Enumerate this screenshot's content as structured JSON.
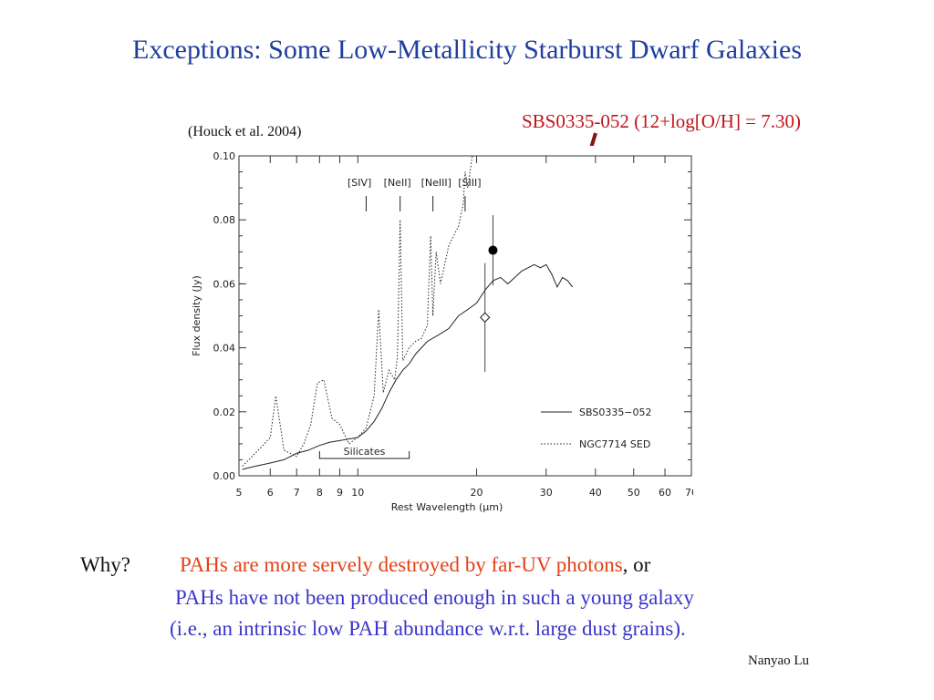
{
  "slide": {
    "title": "Exceptions: Some Low-Metallicity Starburst Dwarf Galaxies",
    "citation": "(Houck et al.  2004)",
    "callout": "SBS0335-052 (12+log[O/H] = 7.30)",
    "why_label": "Why?",
    "reason1_red": "PAHs are more servely destroyed by far-UV photons",
    "reason1_tail": ", or",
    "reason2": "PAHs have not been produced enough in such a young galaxy",
    "reason3": "(i.e., an intrinsic low PAH abundance w.r.t. large dust grains).",
    "author": "Nanyao Lu",
    "colors": {
      "title": "#1f3f9f",
      "red": "#c0141b",
      "orange_red": "#e34216",
      "blue": "#3a35c8",
      "arrow": "#8b1111"
    }
  },
  "chart_data": {
    "type": "line",
    "xlabel": "Rest Wavelength (μm)",
    "ylabel": "Flux density (Jy)",
    "x_scale": "log",
    "xlim": [
      5,
      70
    ],
    "ylim": [
      0,
      0.1
    ],
    "x_ticks": [
      5,
      6,
      7,
      8,
      9,
      10,
      20,
      30,
      40,
      50,
      60,
      70
    ],
    "x_tick_labels": [
      "5",
      "6",
      "7",
      "8",
      "9",
      "10",
      "20",
      "30",
      "40",
      "50",
      "60",
      "70"
    ],
    "y_ticks": [
      0,
      0.02,
      0.04,
      0.06,
      0.08,
      0.1
    ],
    "y_tick_labels": [
      "0.00",
      "0.02",
      "0.04",
      "0.06",
      "0.08",
      "0.10"
    ],
    "line_markers": [
      {
        "label": "[SIV]",
        "x": 10.5
      },
      {
        "label": "[NeII]",
        "x": 12.8
      },
      {
        "label": "[NeIII]",
        "x": 15.5
      },
      {
        "label": "[SIII]",
        "x": 18.7
      }
    ],
    "silicates_label": "Silicates",
    "silicates_range": [
      8,
      13.5
    ],
    "legend": [
      {
        "name": "SBS0335−052",
        "style": "solid"
      },
      {
        "name": "NGC7714 SED",
        "style": "dotted"
      }
    ],
    "series": [
      {
        "name": "SBS0335−052",
        "style": "solid",
        "x": [
          5.1,
          5.5,
          6.0,
          6.5,
          7.0,
          7.5,
          8.0,
          8.5,
          9.0,
          9.5,
          10.0,
          10.5,
          11.0,
          11.5,
          12.0,
          12.5,
          13.0,
          13.5,
          14.0,
          15.0,
          16.0,
          17.0,
          18.0,
          19.0,
          20.0,
          21.0,
          22.0,
          23.0,
          24.0,
          25.0,
          26.0,
          27.0,
          28.0,
          29.0,
          30.0,
          31.0,
          32.0,
          33.0,
          34.0,
          35.0
        ],
        "y": [
          0.002,
          0.003,
          0.004,
          0.005,
          0.007,
          0.008,
          0.0095,
          0.0105,
          0.011,
          0.0115,
          0.012,
          0.014,
          0.017,
          0.021,
          0.026,
          0.03,
          0.033,
          0.035,
          0.038,
          0.042,
          0.044,
          0.046,
          0.05,
          0.052,
          0.054,
          0.058,
          0.061,
          0.062,
          0.06,
          0.062,
          0.064,
          0.065,
          0.066,
          0.065,
          0.066,
          0.063,
          0.059,
          0.062,
          0.061,
          0.059
        ]
      },
      {
        "name": "NGC7714 SED",
        "style": "dotted",
        "x": [
          5.1,
          5.6,
          6.0,
          6.2,
          6.5,
          7.0,
          7.3,
          7.6,
          7.9,
          8.2,
          8.6,
          9.0,
          9.5,
          10.0,
          10.5,
          11.0,
          11.3,
          11.6,
          12.0,
          12.4,
          12.6,
          12.8,
          13.0,
          13.5,
          14.0,
          14.5,
          15.0,
          15.3,
          15.5,
          15.8,
          16.2,
          17.0,
          18.0,
          18.5,
          18.7,
          19.0,
          19.5
        ],
        "y": [
          0.003,
          0.008,
          0.012,
          0.025,
          0.008,
          0.006,
          0.01,
          0.016,
          0.029,
          0.03,
          0.018,
          0.016,
          0.01,
          0.012,
          0.015,
          0.025,
          0.052,
          0.026,
          0.033,
          0.03,
          0.037,
          0.08,
          0.036,
          0.04,
          0.042,
          0.043,
          0.047,
          0.075,
          0.05,
          0.07,
          0.06,
          0.072,
          0.078,
          0.085,
          0.095,
          0.09,
          0.1
        ]
      }
    ],
    "points": [
      {
        "name": "SBS0335−052 photometry",
        "x": 22,
        "y": 0.0705,
        "err": 0.011,
        "marker": "filled-circle"
      },
      {
        "name": "SBS0335−052 photometry",
        "x": 21,
        "y": 0.0495,
        "err": 0.017,
        "marker": "open-diamond"
      }
    ]
  }
}
